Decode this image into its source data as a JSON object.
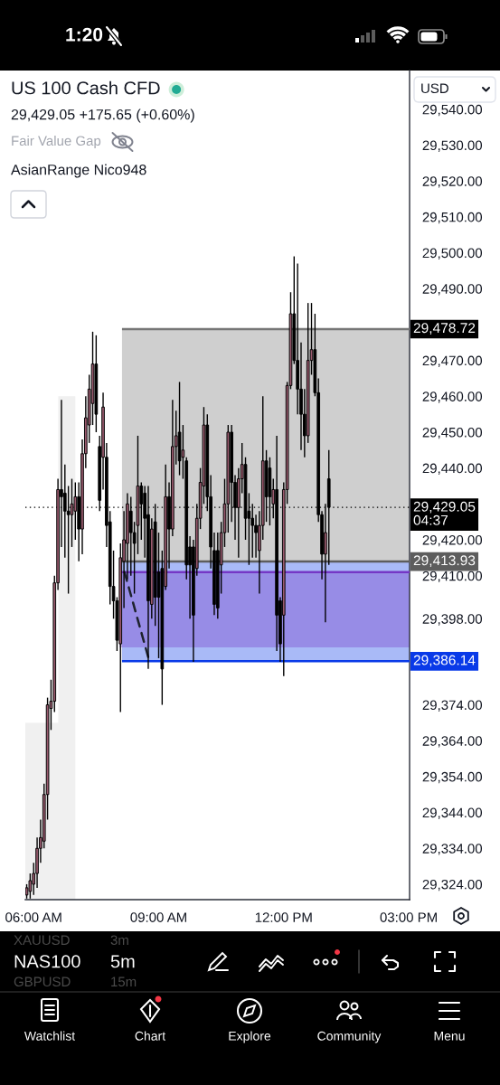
{
  "chart_data": {
    "type": "candlestick",
    "title": "US 100 Cash CFD",
    "subtitle": "29,429.05 +175.65 (+0.60%)",
    "annotations": [
      "Fair Value Gap",
      "AsianRange Nico948",
      "USD",
      "1:20",
      "XAUUSD",
      "3m",
      "NAS100",
      "5m",
      "GBPUSD",
      "15m",
      "Watchlist",
      "Chart",
      "Explore",
      "Community",
      "Menu"
    ],
    "x": [
      5.8333,
      5.9167,
      6.0,
      6.0833,
      6.1667,
      6.25,
      6.3333,
      6.4167,
      6.5,
      6.5833,
      6.6667,
      6.75,
      6.8333,
      6.9167,
      7.0,
      7.0833,
      7.1667,
      7.25,
      7.3333,
      7.4167,
      7.5,
      7.5833,
      7.6667,
      7.75,
      7.8333,
      7.9167,
      8.0,
      8.0833,
      8.1667,
      8.25,
      8.3333,
      8.4167,
      8.5,
      8.5833,
      8.6667,
      8.75,
      8.8333,
      8.9167,
      9.0,
      9.0833,
      9.1667,
      9.25,
      9.3333,
      9.4167,
      9.5,
      9.5833,
      9.6667,
      9.75,
      9.8333,
      9.9167,
      10.0,
      10.0833,
      10.1667,
      10.25,
      10.3333,
      10.4167,
      10.5,
      10.5833,
      10.6667,
      10.75,
      10.8333,
      10.9167,
      11.0,
      11.0833,
      11.1667,
      11.25,
      11.3333,
      11.4167,
      11.5,
      11.5833,
      11.6667,
      11.75,
      11.8333,
      11.9167,
      12.0,
      12.0833,
      12.1667,
      12.25,
      12.3333,
      12.4167,
      12.5,
      12.5833,
      12.6667,
      12.75,
      12.8333,
      12.9167,
      13.0,
      13.0833
    ],
    "ohlc": [
      [
        29321,
        29324,
        29320,
        29323
      ],
      [
        29322,
        29327,
        29320,
        29325
      ],
      [
        29324,
        29330,
        29321,
        29327
      ],
      [
        29327,
        29337,
        29323,
        29334
      ],
      [
        29334,
        29342,
        29330,
        29337
      ],
      [
        29336,
        29352,
        29334,
        29349
      ],
      [
        29349,
        29376,
        29342,
        29374
      ],
      [
        29373,
        29381,
        29367,
        29375
      ],
      [
        29375,
        29410,
        29372,
        29408
      ],
      [
        29408,
        29437,
        29406,
        29434
      ],
      [
        29434,
        29459,
        29418,
        29432
      ],
      [
        29433,
        29441,
        29415,
        29428
      ],
      [
        29428,
        29435,
        29405,
        29427
      ],
      [
        29427,
        29437,
        29418,
        29430
      ],
      [
        29428,
        29436,
        29420,
        29432
      ],
      [
        29432,
        29436,
        29414,
        29423
      ],
      [
        29423,
        29448,
        29416,
        29444
      ],
      [
        29444,
        29460,
        29440,
        29454
      ],
      [
        29452,
        29466,
        29447,
        29462
      ],
      [
        29458,
        29478,
        29452,
        29469
      ],
      [
        29469,
        29477,
        29450,
        29455
      ],
      [
        29446,
        29449,
        29428,
        29431
      ],
      [
        29443,
        29461,
        29434,
        29457
      ],
      [
        29443,
        29447,
        29418,
        29424
      ],
      [
        29425,
        29428,
        29402,
        29407
      ],
      [
        29407,
        29417,
        29398,
        29403
      ],
      [
        29403,
        29404,
        29389,
        29392
      ],
      [
        29391,
        29419,
        29372,
        29415
      ],
      [
        29414,
        29428,
        29401,
        29420
      ],
      [
        29419,
        29433,
        29409,
        29430
      ],
      [
        29428,
        29432,
        29410,
        29422
      ],
      [
        29422,
        29425,
        29405,
        29419
      ],
      [
        29424,
        29449,
        29416,
        29435
      ],
      [
        29435,
        29436,
        29420,
        29430
      ],
      [
        29433,
        29435,
        29415,
        29426
      ],
      [
        29427,
        29435,
        29384,
        29403
      ],
      [
        29402,
        29426,
        29398,
        29423
      ],
      [
        29425,
        29430,
        29396,
        29404
      ],
      [
        29411,
        29422,
        29387,
        29404
      ],
      [
        29412,
        29417,
        29374,
        29384
      ],
      [
        29407,
        29441,
        29406,
        29432
      ],
      [
        29432,
        29436,
        29412,
        29423
      ],
      [
        29423,
        29459,
        29421,
        29446
      ],
      [
        29446,
        29456,
        29441,
        29449
      ],
      [
        29450,
        29464,
        29438,
        29442
      ],
      [
        29443,
        29452,
        29437,
        29445
      ],
      [
        29442,
        29443,
        29409,
        29413
      ],
      [
        29418,
        29421,
        29398,
        29413
      ],
      [
        29418,
        29420,
        29386,
        29399
      ],
      [
        29412,
        29430,
        29410,
        29426
      ],
      [
        29426,
        29440,
        29423,
        29436
      ],
      [
        29435,
        29457,
        29430,
        29452
      ],
      [
        29452,
        29455,
        29428,
        29432
      ],
      [
        29432,
        29438,
        29412,
        29418
      ],
      [
        29417,
        29422,
        29399,
        29402
      ],
      [
        29417,
        29422,
        29398,
        29401
      ],
      [
        29413,
        29425,
        29405,
        29422
      ],
      [
        29422,
        29437,
        29418,
        29430
      ],
      [
        29430,
        29452,
        29422,
        29450
      ],
      [
        29450,
        29452,
        29425,
        29436
      ],
      [
        29436,
        29438,
        29420,
        29429
      ],
      [
        29429,
        29440,
        29415,
        29437
      ],
      [
        29437,
        29447,
        29433,
        29441
      ],
      [
        29441,
        29443,
        29420,
        29426
      ],
      [
        29428,
        29433,
        29413,
        29426
      ],
      [
        29426,
        29430,
        29415,
        29424
      ],
      [
        29424,
        29427,
        29415,
        29422
      ],
      [
        29417,
        29428,
        29405,
        29424
      ],
      [
        29424,
        29460,
        29420,
        29442
      ],
      [
        29442,
        29445,
        29425,
        29432
      ],
      [
        29440,
        29443,
        29424,
        29432
      ],
      [
        29430,
        29437,
        29426,
        29434
      ],
      [
        29434,
        29449,
        29389,
        29399
      ],
      [
        29403,
        29404,
        29386,
        29391
      ],
      [
        29399,
        29436,
        29382,
        29434
      ],
      [
        29434,
        29464,
        29430,
        29463
      ],
      [
        29463,
        29489,
        29462,
        29483
      ],
      [
        29483,
        29499,
        29469,
        29470
      ],
      [
        29470,
        29497,
        29455,
        29462
      ],
      [
        29462,
        29475,
        29445,
        29455
      ],
      [
        29455,
        29462,
        29443,
        29449
      ],
      [
        29449,
        29486,
        29447,
        29470
      ],
      [
        29470,
        29486,
        29466,
        29473
      ],
      [
        29473,
        29483,
        29460,
        29461
      ],
      [
        29461,
        29465,
        29425,
        29427
      ],
      [
        29427,
        29428,
        29409,
        29416
      ],
      [
        29416,
        29430,
        29397,
        29422
      ],
      [
        29437,
        29445,
        29413,
        29429.05
      ]
    ],
    "colors": [
      "#9a5a6e",
      "#9a5a6e",
      "#9a5a6e",
      "#9a5a6e",
      "#9a5a6e",
      "#9a5a6e",
      "#9a5a6e",
      "#9a5a6e",
      "#9a5a6e",
      "#9a5a6e",
      "#000000",
      "#000000",
      "#000000",
      "#9a5a6e",
      "#9a5a6e",
      "#000000",
      "#9a5a6e",
      "#9a5a6e",
      "#9a5a6e",
      "#9a5a6e",
      "#000000",
      "#000000",
      "#9a5a6e",
      "#000000",
      "#000000",
      "#000000",
      "#000000",
      "#9a5a6e",
      "#9a5a6e",
      "#9a5a6e",
      "#000000",
      "#000000",
      "#9a5a6e",
      "#000000",
      "#000000",
      "#000000",
      "#9a5a6e",
      "#000000",
      "#000000",
      "#000000",
      "#9a5a6e",
      "#000000",
      "#9a5a6e",
      "#9a5a6e",
      "#000000",
      "#9a5a6e",
      "#000000",
      "#000000",
      "#000000",
      "#9a5a6e",
      "#9a5a6e",
      "#9a5a6e",
      "#000000",
      "#000000",
      "#000000",
      "#000000",
      "#9a5a6e",
      "#9a5a6e",
      "#9a5a6e",
      "#000000",
      "#000000",
      "#9a5a6e",
      "#9a5a6e",
      "#000000",
      "#000000",
      "#000000",
      "#000000",
      "#9a5a6e",
      "#9a5a6e",
      "#000000",
      "#000000",
      "#9a5a6e",
      "#000000",
      "#000000",
      "#9a5a6e",
      "#9a5a6e",
      "#9a5a6e",
      "#000000",
      "#000000",
      "#000000",
      "#000000",
      "#9a5a6e",
      "#9a5a6e",
      "#000000",
      "#000000",
      "#000000",
      "#9a5a6e",
      "#000000"
    ],
    "series": [
      {
        "type": "area",
        "x": [
          5.8,
          6.59,
          6.59,
          7.0
        ],
        "values": [
          29369,
          29369,
          29460,
          29460
        ],
        "color": "#f0f0f0"
      },
      {
        "type": "line",
        "x": [
          8.12,
          15.02
        ],
        "values": [
          29478.72,
          29478.72
        ],
        "upper": [
          29478.72,
          29478.72
        ],
        "lower": [
          29413.93,
          29413.93
        ],
        "color": "#767676",
        "value_labels": [
          null,
          "29,478.72"
        ]
      },
      {
        "type": "line",
        "x": [
          8.12,
          15.02
        ],
        "values": [
          29386.14,
          29386.14
        ],
        "upper": [
          29413.93,
          29413.93
        ],
        "lower": [
          29386.14,
          29386.14
        ],
        "color": "#093ae8",
        "value_labels": [
          null,
          "29,386.14"
        ]
      },
      {
        "type": "line",
        "x": [
          8.06,
          15.02
        ],
        "values": [
          29411,
          29411
        ],
        "upper": [
          29411,
          29411
        ],
        "lower": [
          29390,
          29390
        ],
        "color": "#7537c6"
      },
      {
        "type": "line",
        "x": [
          8.12,
          15.02
        ],
        "values": [
          29413.93,
          29413.93
        ],
        "color": "#5d5d5d",
        "value_labels": [
          null,
          "29,413.93"
        ]
      },
      {
        "type": "line",
        "x": [
          8.18,
          8.78
        ],
        "values": [
          29411,
          29386
        ],
        "color": "#1e222d",
        "line_style": "dashed"
      }
    ],
    "ref_lines": [
      {
        "axis": "y",
        "value": 29429.05,
        "label": "29,429.05\n04:37",
        "color": "#000000",
        "line_style": "dotted"
      }
    ],
    "xlim": [
      5.8,
      15.02
    ],
    "ylim": [
      29319.7,
      29550.8
    ],
    "xticks": [
      {
        "value": 6,
        "label": "06:00 AM"
      },
      {
        "value": 9,
        "label": "09:00 AM"
      },
      {
        "value": 12,
        "label": "12:00 PM"
      },
      {
        "value": 15,
        "label": "03:00 PM"
      }
    ],
    "yticks": [
      {
        "value": 29540,
        "label": "29,540.00"
      },
      {
        "value": 29530,
        "label": "29,530.00"
      },
      {
        "value": 29520,
        "label": "29,520.00"
      },
      {
        "value": 29510,
        "label": "29,510.00"
      },
      {
        "value": 29500,
        "label": "29,500.00"
      },
      {
        "value": 29490,
        "label": "29,490.00"
      },
      {
        "value": 29470,
        "label": "29,470.00"
      },
      {
        "value": 29460,
        "label": "29,460.00"
      },
      {
        "value": 29450,
        "label": "29,450.00"
      },
      {
        "value": 29440,
        "label": "29,440.00"
      },
      {
        "value": 29420,
        "label": "29,420.00"
      },
      {
        "value": 29410,
        "label": "29,410.00"
      },
      {
        "value": 29398,
        "label": "29,398.00"
      },
      {
        "value": 29374,
        "label": "29,374.00"
      },
      {
        "value": 29364,
        "label": "29,364.00"
      },
      {
        "value": 29354,
        "label": "29,354.00"
      },
      {
        "value": 29344,
        "label": "29,344.00"
      },
      {
        "value": 29334,
        "label": "29,334.00"
      },
      {
        "value": 29324,
        "label": "29,324.00"
      }
    ]
  }
}
